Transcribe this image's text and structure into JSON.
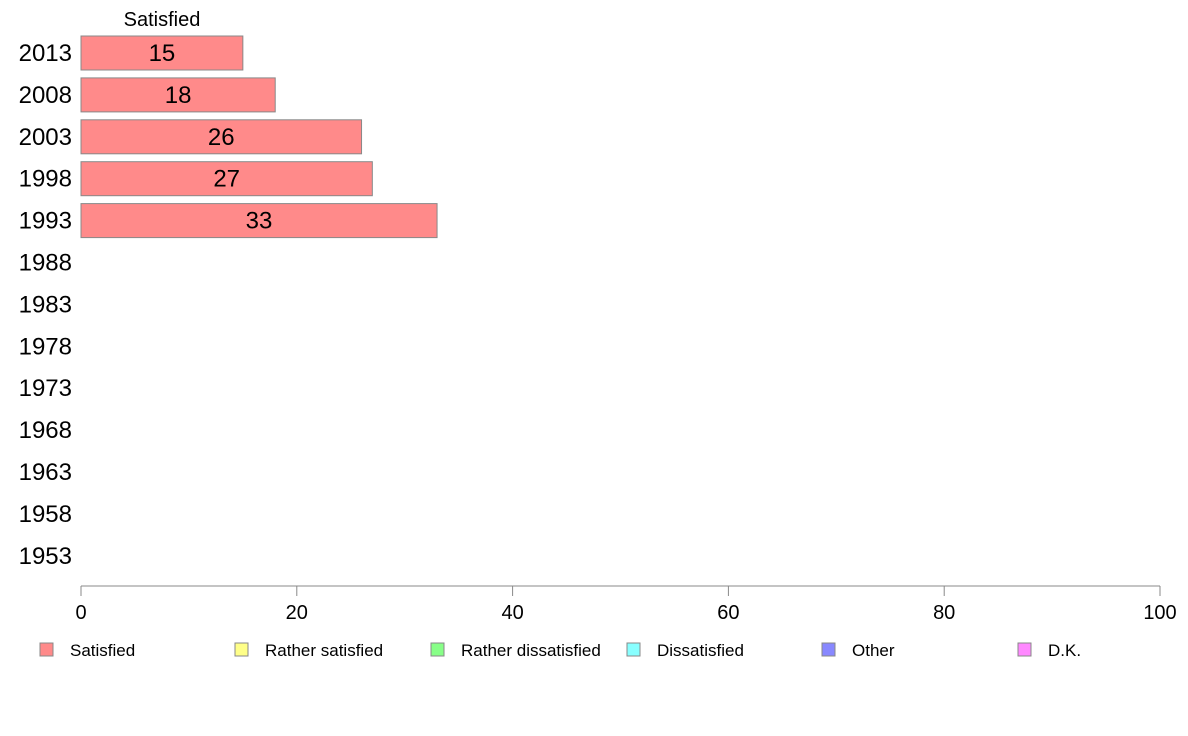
{
  "chart_data": {
    "type": "bar",
    "orientation": "horizontal",
    "stacked": true,
    "header": "Satisfied",
    "categories": [
      "2013",
      "2008",
      "2003",
      "1998",
      "1993",
      "1988",
      "1983",
      "1978",
      "1973",
      "1968",
      "1963",
      "1958",
      "1953"
    ],
    "series": [
      {
        "name": "Satisfied",
        "color": "#ff8a8a",
        "values": [
          15,
          18,
          26,
          27,
          33,
          null,
          null,
          null,
          null,
          null,
          null,
          null,
          null
        ]
      },
      {
        "name": "Rather satisfied",
        "color": "#ffff88",
        "values": [
          null,
          null,
          null,
          null,
          null,
          null,
          null,
          null,
          null,
          null,
          null,
          null,
          null
        ]
      },
      {
        "name": "Rather dissatisfied",
        "color": "#88ff88",
        "values": [
          null,
          null,
          null,
          null,
          null,
          null,
          null,
          null,
          null,
          null,
          null,
          null,
          null
        ]
      },
      {
        "name": "Dissatisfied",
        "color": "#88ffff",
        "values": [
          null,
          null,
          null,
          null,
          null,
          null,
          null,
          null,
          null,
          null,
          null,
          null,
          null
        ]
      },
      {
        "name": "Other",
        "color": "#8888ff",
        "values": [
          null,
          null,
          null,
          null,
          null,
          null,
          null,
          null,
          null,
          null,
          null,
          null,
          null
        ]
      },
      {
        "name": "D.K.",
        "color": "#ff88ff",
        "values": [
          null,
          null,
          null,
          null,
          null,
          null,
          null,
          null,
          null,
          null,
          null,
          null,
          null
        ]
      }
    ],
    "data_labels": [
      "15",
      "18",
      "26",
      "27",
      "33"
    ],
    "xlim": [
      0,
      100
    ],
    "xticks": [
      0,
      20,
      40,
      60,
      80,
      100
    ],
    "xtick_labels": [
      "0",
      "20",
      "40",
      "60",
      "80",
      "100"
    ],
    "grid": false,
    "legend_position": "bottom"
  }
}
